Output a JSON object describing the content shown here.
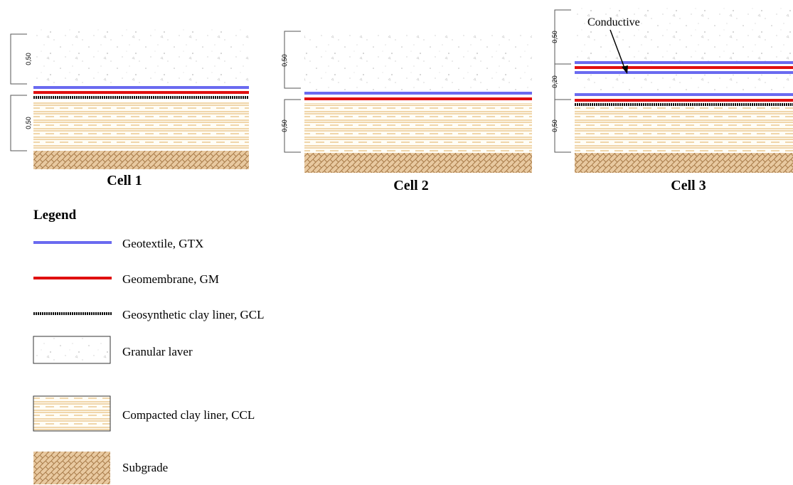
{
  "cells": [
    {
      "label": "Cell 1",
      "dims": [
        "0,50",
        "0,50"
      ]
    },
    {
      "label": "Cell 2",
      "dims": [
        "0,50",
        "0,50"
      ]
    },
    {
      "label": "Cell 3",
      "dims": [
        "0,50",
        "0,20",
        "0,50"
      ],
      "annotation": "Conductive"
    }
  ],
  "legend": {
    "title": "Legend",
    "items": [
      {
        "label": "Geotextile, GTX"
      },
      {
        "label": "Geomembrane, GM"
      },
      {
        "label": "Geosynthetic clay liner, GCL"
      },
      {
        "label": "Granular laver"
      },
      {
        "label": "Compacted clay liner, CCL"
      },
      {
        "label": "Subgrade"
      }
    ]
  }
}
